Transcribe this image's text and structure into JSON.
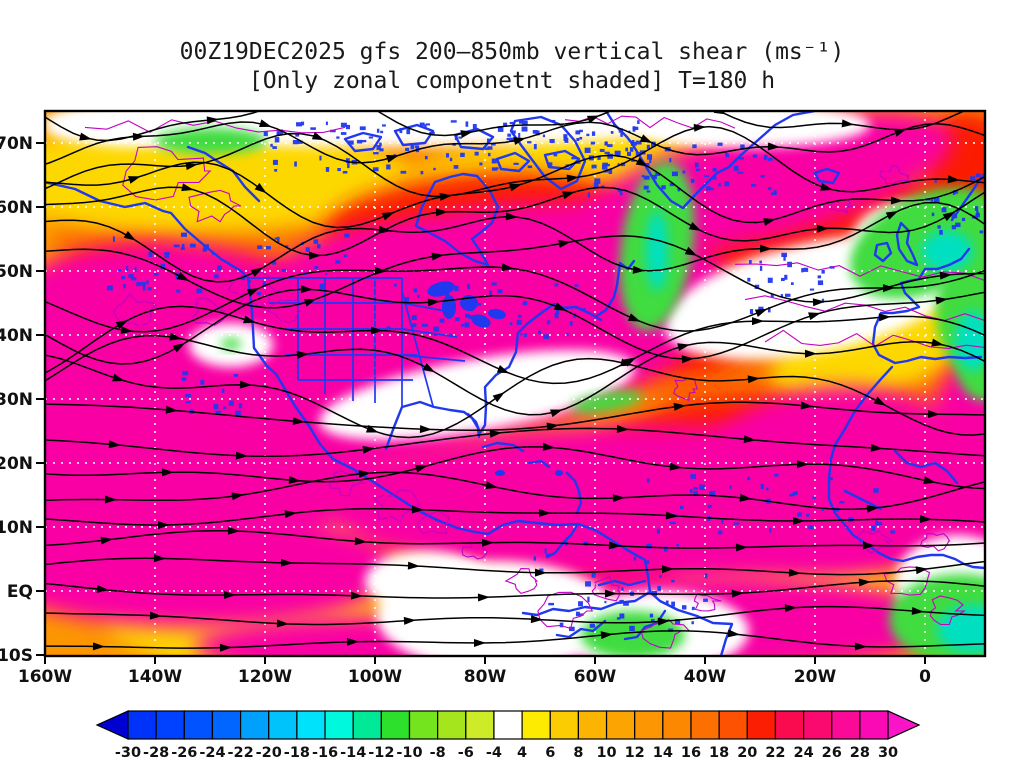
{
  "title": {
    "line1": "00Z19DEC2025 gfs 200–850mb vertical shear (ms⁻¹)",
    "line2": "[Only zonal componetnt shaded] T=180 h"
  },
  "axes": {
    "y_ticks": [
      "70N",
      "60N",
      "50N",
      "40N",
      "30N",
      "20N",
      "10N",
      "EQ",
      "10S"
    ],
    "x_ticks": [
      "160W",
      "140W",
      "120W",
      "100W",
      "80W",
      "60W",
      "40W",
      "20W",
      "0"
    ]
  },
  "colorbar": {
    "labels": [
      "-30",
      "-28",
      "-26",
      "-24",
      "-22",
      "-20",
      "-18",
      "-16",
      "-14",
      "-12",
      "-10",
      "-8",
      "-6",
      "-4",
      "4",
      "6",
      "8",
      "10",
      "12",
      "14",
      "16",
      "18",
      "20",
      "22",
      "24",
      "26",
      "28",
      "30"
    ],
    "segment_colors": [
      "#0033fa",
      "#0042ff",
      "#0053ff",
      "#0066ff",
      "#00a0fc",
      "#00c3fc",
      "#00e1fc",
      "#00f8dc",
      "#00e996",
      "#2ce02c",
      "#73e41e",
      "#a5e51e",
      "#cdeb26",
      "#ffffff",
      "#fdec02",
      "#fccc02",
      "#fcb402",
      "#fca402",
      "#fc9602",
      "#fc8802",
      "#fc7002",
      "#fc5202",
      "#fc1e02",
      "#fa0a4e",
      "#fa0a6e",
      "#fa0a96",
      "#fa0ab4"
    ],
    "arrow_left_color": "#0000d2",
    "arrow_right_color": "#fa14c8"
  },
  "map_colors": {
    "streamlines": "#000000",
    "coastlines": "#2038ee",
    "terrain_contours": "#c203c2",
    "graticule": "#ffffff",
    "dominant_shading": "#f900a4"
  },
  "chart_data": {
    "type": "heatmap",
    "title": "00Z19DEC2025 gfs 200–850mb vertical shear (ms⁻¹)",
    "subtitle": "[Only zonal componetnt shaded] T=180 h",
    "init_time": "00Z19DEC2025",
    "model": "gfs",
    "layer": "200–850mb",
    "variable": "vertical shear",
    "units": "ms⁻¹",
    "forecast_hour": "T=180 h",
    "x_tick_labels": [
      "160W",
      "140W",
      "120W",
      "100W",
      "80W",
      "60W",
      "40W",
      "20W",
      "0"
    ],
    "y_tick_labels": [
      "70N",
      "60N",
      "50N",
      "40N",
      "30N",
      "20N",
      "10N",
      "EQ",
      "10S"
    ],
    "colorbar_levels": [
      -30,
      -28,
      -26,
      -24,
      -22,
      -20,
      -18,
      -16,
      -14,
      -12,
      -10,
      -8,
      -6,
      -4,
      4,
      6,
      8,
      10,
      12,
      14,
      16,
      18,
      20,
      22,
      24,
      26,
      28,
      30
    ],
    "colorbar_colors": [
      "#0000d2",
      "#0033fa",
      "#0042ff",
      "#0053ff",
      "#0066ff",
      "#00a0fc",
      "#00c3fc",
      "#00e1fc",
      "#00f8dc",
      "#00e996",
      "#2ce02c",
      "#73e41e",
      "#a5e51e",
      "#cdeb26",
      "#ffffff",
      "#fdec02",
      "#fccc02",
      "#fcb402",
      "#fca402",
      "#fc9602",
      "#fc8802",
      "#fc7002",
      "#fc5202",
      "#fc1e02",
      "#fa0a4e",
      "#fa0a6e",
      "#fa0a96",
      "#fa0ab4",
      "#fa14c8"
    ],
    "overlays": [
      "black streamlines with arrowheads (shear vector flow)",
      "blue coastlines, lakes, rivers and US state borders",
      "thin magenta terrain/contour squiggles",
      "white dotted lat-lon graticule every 10° lat / 20° lon"
    ],
    "field_summary": [
      "Shear > 30 ms⁻¹ (magenta) over NE Pacific subtropics, central North America, the subtropical/tropical Atlantic and the Sahara, plus a NW-SE band in the high-latitude North Atlantic",
      "Near-zero (white) band along the top edge (~75N), across the SE United States into the mid-Atlantic toward Europe, over equatorial South America and parts of equatorial Africa",
      "Easterly (green/cyan, -6 to -16 ms⁻¹) patches near Davis Strait, over NW Europe/Iberia and equatorial Africa at the lower-right corner",
      "Orange/yellow (4–20 ms⁻¹) over Alaska/Arctic Canada, the tropical east Pacific and the ITCZ flank near 0–10N"
    ]
  }
}
